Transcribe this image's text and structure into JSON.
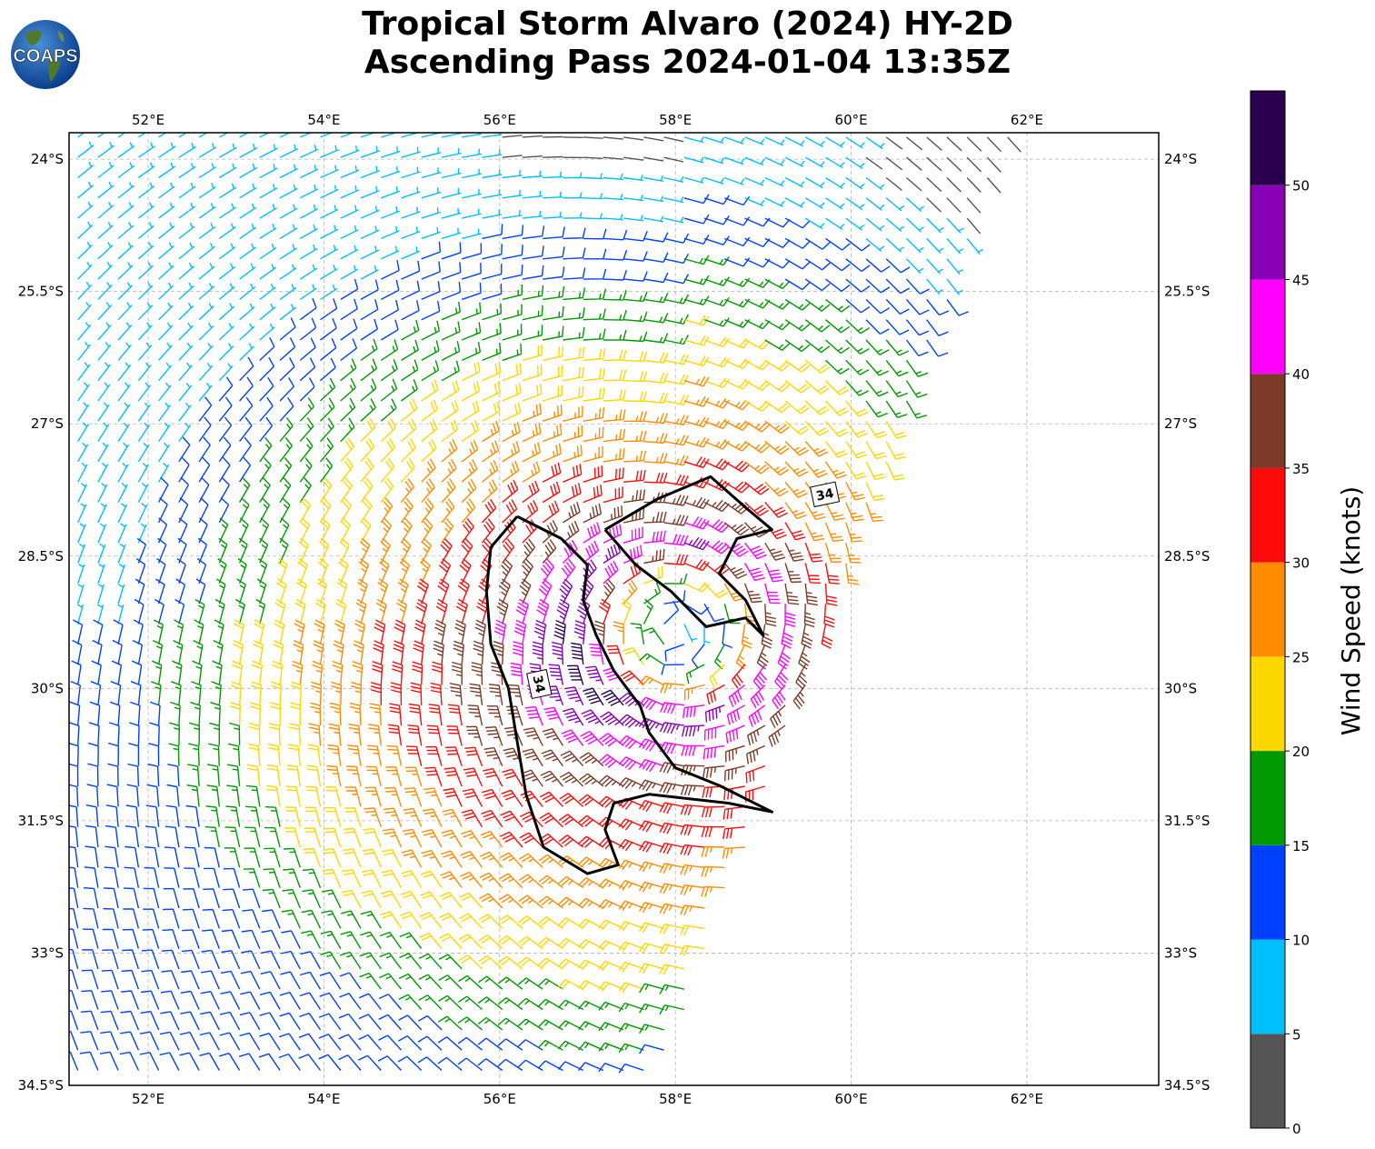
{
  "title": {
    "line1": "Tropical Storm Alvaro (2024) HY-2D",
    "line2": "Ascending Pass 2024-01-04 13:35Z"
  },
  "logo": {
    "icon": "coaps-globe-logo",
    "text": "COAPS"
  },
  "map": {
    "lon_range": [
      51.1,
      63.5
    ],
    "lat_range": [
      -34.5,
      -23.7
    ],
    "lon_ticks": [
      52,
      54,
      56,
      58,
      60,
      62
    ],
    "lat_ticks": [
      -24,
      -25.5,
      -27,
      -28.5,
      -30,
      -31.5,
      -33,
      -34.5
    ],
    "lon_tick_labels": [
      "52°E",
      "54°E",
      "56°E",
      "58°E",
      "60°E",
      "62°E"
    ],
    "lat_tick_labels": [
      "24°S",
      "25.5°S",
      "27°S",
      "28.5°S",
      "30°S",
      "31.5°S",
      "33°S",
      "34.5°S"
    ],
    "grid": true,
    "storm_center": {
      "lon": 58.0,
      "lat": -29.35
    },
    "swath_east_edge": [
      [
        61.8,
        -23.7
      ],
      [
        57.8,
        -34.5
      ]
    ],
    "contour_label": "34"
  },
  "colorbar": {
    "label": "Wind Speed (knots)",
    "bounds": [
      0,
      5,
      10,
      15,
      20,
      25,
      30,
      35,
      40,
      45,
      50,
      55
    ],
    "tick_labels": [
      "0",
      "5",
      "10",
      "15",
      "20",
      "25",
      "30",
      "35",
      "40",
      "45",
      "50"
    ],
    "colors": [
      "#555555",
      "#00bfff",
      "#0040ff",
      "#009900",
      "#ffd700",
      "#ff8c00",
      "#ff0a0a",
      "#7b3b28",
      "#ff00ff",
      "#8800b3",
      "#2a004f"
    ]
  }
}
